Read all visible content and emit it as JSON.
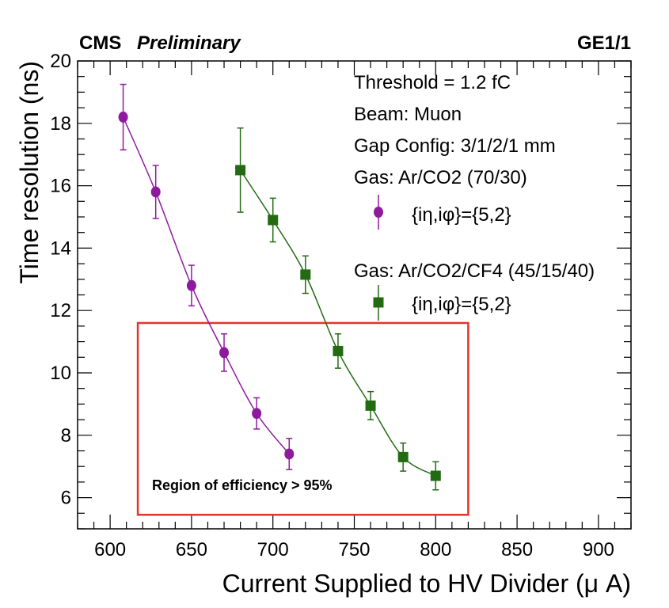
{
  "header": {
    "experiment": "CMS",
    "status": "Preliminary",
    "detector": "GE1/1"
  },
  "annotations": {
    "threshold": "Threshold = 1.2 fC",
    "beam": "Beam: Muon",
    "gap_config": "Gap Config: 3/1/2/1 mm",
    "region": "Region of efficiency > 95%"
  },
  "colors": {
    "series_1": "#8e1b9e",
    "series_2": "#226b12",
    "region_box": "#e0362a"
  },
  "chart_data": {
    "type": "scatter",
    "xlabel": "Current Supplied to HV Divider (μ A)",
    "ylabel": "Time resolution (ns)",
    "xlim": [
      580,
      920
    ],
    "ylim": [
      5,
      20
    ],
    "xticks": [
      600,
      650,
      700,
      750,
      800,
      850,
      900
    ],
    "yticks": [
      6,
      8,
      10,
      12,
      14,
      16,
      18,
      20
    ],
    "grid": false,
    "series": [
      {
        "name": "Gas: Ar/CO2 (70/30)",
        "marker": "circle",
        "legend_label": "{iη,iφ}={5,2}",
        "x": [
          608,
          628,
          650,
          670,
          690,
          710
        ],
        "y": [
          18.2,
          15.8,
          12.8,
          10.65,
          8.7,
          7.4
        ],
        "err": [
          1.05,
          0.85,
          0.65,
          0.6,
          0.5,
          0.5
        ]
      },
      {
        "name": "Gas: Ar/CO2/CF4 (45/15/40)",
        "marker": "square",
        "legend_label": "{iη,iφ}={5,2}",
        "x": [
          680,
          700,
          720,
          740,
          760,
          780,
          800
        ],
        "y": [
          16.5,
          14.9,
          13.15,
          10.7,
          8.95,
          7.3,
          6.7
        ],
        "err": [
          1.35,
          0.7,
          0.6,
          0.55,
          0.45,
          0.45,
          0.45
        ]
      }
    ],
    "region_box": {
      "x": [
        617,
        820
      ],
      "y": [
        5.45,
        11.6
      ]
    }
  }
}
